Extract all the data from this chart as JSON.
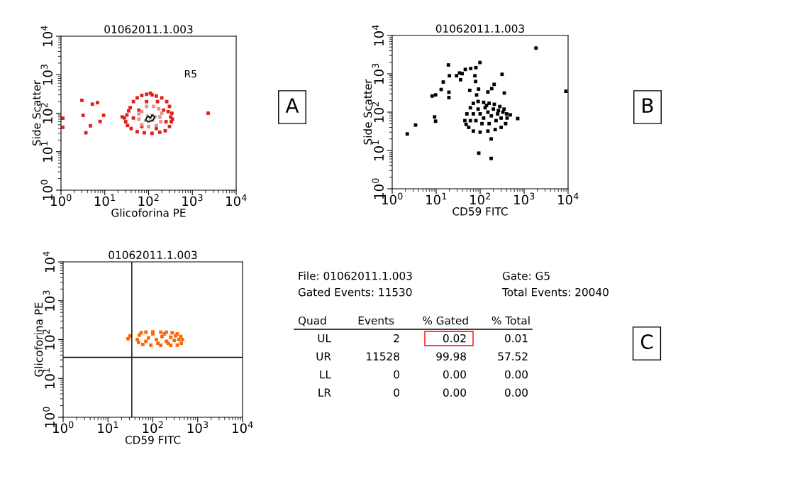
{
  "chart_data": [
    {
      "type": "scatter",
      "title": "01062011.1.003",
      "xlabel": "Glicoforina PE",
      "ylabel": "Side Scatter",
      "log": "xy",
      "marker": "square",
      "xlim": [
        1,
        10000
      ],
      "ylim": [
        1,
        10000
      ],
      "xticks": [
        {
          "value": 1,
          "label": "10$^{0}$"
        },
        {
          "value": 10,
          "label": "10$^{1}$"
        },
        {
          "value": 100,
          "label": "10$^{2}$"
        },
        {
          "value": 1000,
          "label": "10$^{3}$"
        },
        {
          "value": 10000,
          "label": "10$^{4}$"
        }
      ],
      "yticks": [
        {
          "value": 1,
          "label": "10$^{0}$"
        },
        {
          "value": 10,
          "label": "10$^{1}$"
        },
        {
          "value": 100,
          "label": "10$^{2}$"
        },
        {
          "value": 1000,
          "label": "10$^{3}$"
        },
        {
          "value": 10000,
          "label": "10$^{4}$"
        }
      ],
      "series": [
        {
          "color": "#e0201a",
          "x": [
            30,
            32,
            38,
            45,
            55,
            70,
            90,
            120,
            150,
            200,
            260,
            300,
            340,
            350,
            300,
            240,
            180,
            120,
            80,
            55,
            40,
            33,
            28,
            110,
            25,
            35,
            250,
            320,
            60,
            70,
            150,
            220,
            45,
            280,
            90,
            160,
            330,
            1.1,
            3.0,
            3.2,
            5.2,
            6.8,
            4.7,
            3.7,
            7.8,
            9.4,
            1.1,
            2290
          ],
          "values": [
            60,
            90,
            140,
            200,
            250,
            290,
            310,
            300,
            280,
            250,
            200,
            150,
            100,
            70,
            45,
            35,
            32,
            30,
            31,
            33,
            40,
            48,
            75,
            330,
            80,
            115,
            60,
            80,
            120,
            45,
            40,
            120,
            75,
            110,
            200,
            200,
            60,
            74,
            216,
            88,
            172,
            188,
            47,
            31,
            61,
            88,
            43,
            100
          ]
        },
        {
          "color": "#e89090",
          "x": [
            60,
            70,
            90,
            130,
            170,
            200,
            190,
            150,
            100,
            70,
            60,
            180
          ],
          "values": [
            70,
            110,
            150,
            150,
            130,
            100,
            60,
            48,
            45,
            50,
            95,
            80
          ]
        },
        {
          "color": "#c8c8c8",
          "x": [
            85,
            100,
            125,
            140,
            120,
            95,
            110
          ],
          "values": [
            65,
            60,
            65,
            80,
            90,
            85,
            75
          ]
        }
      ],
      "annotations": [
        "R5",
        "A"
      ]
    },
    {
      "type": "scatter",
      "title": "01062011.1.003",
      "xlabel": "CD59 FITC",
      "ylabel": "Side Scatter",
      "log": "xy",
      "marker": "square",
      "xlim": [
        1,
        10000
      ],
      "ylim": [
        1,
        10000
      ],
      "xticks": [
        {
          "value": 1,
          "label": "10$^{0}$"
        },
        {
          "value": 10,
          "label": "10$^{1}$"
        },
        {
          "value": 100,
          "label": "10$^{2}$"
        },
        {
          "value": 1000,
          "label": "10$^{3}$"
        },
        {
          "value": 10000,
          "label": "10$^{4}$"
        }
      ],
      "yticks": [
        {
          "value": 1,
          "label": "10$^{0}$"
        },
        {
          "value": 10,
          "label": "10$^{1}$"
        },
        {
          "value": 100,
          "label": "10$^{2}$"
        },
        {
          "value": 1000,
          "label": "10$^{3}$"
        },
        {
          "value": 10000,
          "label": "10$^{4}$"
        }
      ],
      "series": [
        {
          "color": "#000000",
          "x": [
            45,
            50,
            60,
            70,
            90,
            120,
            160,
            210,
            280,
            350,
            400,
            410,
            380,
            300,
            220,
            150,
            100,
            70,
            55,
            48,
            80,
            100,
            120,
            150,
            180,
            200,
            250,
            300,
            130,
            90,
            70,
            160,
            230,
            260,
            110,
            140,
            330,
            60,
            2.2,
            3.4,
            8.1,
            9.7,
            9.2,
            9.7,
            13,
            14.5,
            19,
            20,
            19.5,
            19.5,
            29,
            34,
            39,
            36,
            46,
            61,
            80,
            99,
            76,
            79,
            92,
            58,
            83,
            150,
            208,
            183,
            354,
            315,
            485,
            716,
            1860,
            8900,
            178,
            93,
            178
          ],
          "values": [
            60,
            90,
            130,
            170,
            190,
            180,
            170,
            160,
            140,
            120,
            90,
            70,
            50,
            40,
            35,
            32,
            30,
            32,
            40,
            48,
            60,
            90,
            70,
            100,
            80,
            120,
            90,
            70,
            130,
            120,
            90,
            50,
            60,
            110,
            50,
            150,
            100,
            60,
            27,
            46,
            263,
            282,
            75,
            58,
            390,
            610,
            1700,
            890,
            330,
            240,
            890,
            1050,
            1010,
            700,
            1300,
            1370,
            1450,
            1970,
            890,
            630,
            400,
            370,
            280,
            335,
            530,
            410,
            315,
            970,
            85,
            68,
            4700,
            350,
            20,
            8.5,
            6.2
          ]
        }
      ],
      "annotations": [
        "B"
      ]
    },
    {
      "type": "scatter",
      "title": "01062011.1.003",
      "xlabel": "CD59 FITC",
      "ylabel": "Glicoforina PE",
      "log": "xy",
      "marker": "square",
      "xlim": [
        1,
        10000
      ],
      "ylim": [
        1,
        10000
      ],
      "xticks": [
        {
          "value": 1,
          "label": "10$^{0}$"
        },
        {
          "value": 10,
          "label": "10$^{1}$"
        },
        {
          "value": 100,
          "label": "10$^{2}$"
        },
        {
          "value": 1000,
          "label": "10$^{3}$"
        },
        {
          "value": 10000,
          "label": "10$^{4}$"
        }
      ],
      "yticks": [
        {
          "value": 1,
          "label": "10$^{0}$"
        },
        {
          "value": 10,
          "label": "10$^{1}$"
        },
        {
          "value": 100,
          "label": "10$^{2}$"
        },
        {
          "value": 1000,
          "label": "10$^{3}$"
        },
        {
          "value": 10000,
          "label": "10$^{4}$"
        }
      ],
      "ref_lines": [
        {
          "axis": "x",
          "value": 34,
          "color": "#000000"
        },
        {
          "axis": "y",
          "value": 35,
          "color": "#000000"
        }
      ],
      "series": [
        {
          "color": "#ff6600",
          "x": [
            45,
            50,
            55,
            70,
            100,
            150,
            200,
            270,
            350,
            420,
            457,
            430,
            350,
            250,
            150,
            90,
            60,
            48,
            80,
            120,
            160,
            200,
            250,
            300,
            100,
            180,
            320,
            70,
            380,
            130,
            220,
            28,
            31
          ],
          "values": [
            100,
            130,
            150,
            155,
            158,
            155,
            155,
            150,
            140,
            120,
            100,
            80,
            72,
            71,
            71,
            72,
            75,
            85,
            110,
            100,
            120,
            90,
            115,
            95,
            140,
            140,
            125,
            90,
            100,
            80,
            80,
            105,
            124
          ]
        }
      ]
    },
    {
      "type": "other",
      "annotations": [
        "File: 01062011.1.003",
        "Gate: G5",
        "Gated Events: 11530",
        "Total Events: 20040",
        "Quad",
        "Events",
        "% Gated",
        "% Total",
        "UL",
        "2",
        "0.02",
        "0.01",
        "UR",
        "11528",
        "99.98",
        "57.52",
        "LL",
        "0",
        "0.00",
        "0.00",
        "LR",
        "0",
        "0.00",
        "0.00",
        "C"
      ]
    }
  ]
}
